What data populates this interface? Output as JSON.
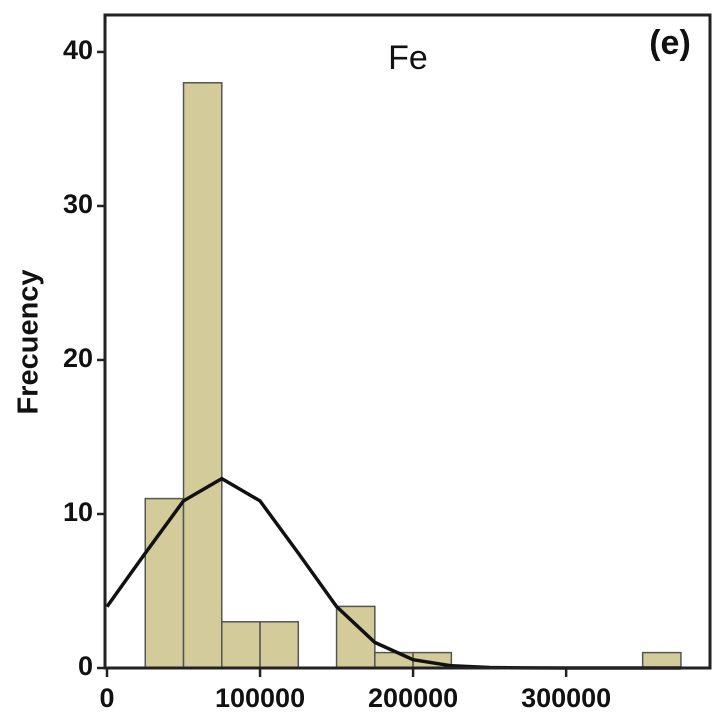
{
  "chart_data": {
    "type": "histogram",
    "title": "Fe",
    "annotation": "(e)",
    "ylabel": "Frecuency",
    "bins": [
      25000,
      50000,
      75000,
      100000,
      125000,
      150000,
      175000,
      200000,
      225000,
      250000,
      275000,
      300000,
      325000,
      350000,
      375000
    ],
    "counts": [
      11,
      38,
      3,
      3,
      0,
      4,
      1,
      1,
      0,
      0,
      0,
      0,
      0,
      1
    ],
    "color": "#d3cc9a",
    "curve": {
      "color": "#111111",
      "x": [
        0,
        25000,
        50000,
        75000,
        100000,
        125000,
        150000,
        175000,
        200000,
        225000,
        250000,
        275000,
        300000,
        325000,
        350000,
        375000
      ],
      "values": [
        3.99,
        7.46,
        10.85,
        12.3,
        10.85,
        7.46,
        3.99,
        1.66,
        0.54,
        0.14,
        0.03,
        0.005,
        0,
        0,
        0,
        0
      ]
    },
    "xlim": [
      0,
      394000
    ],
    "ylim": [
      0,
      42.4
    ],
    "xticks": [
      0,
      100000,
      200000,
      300000
    ],
    "yticks": [
      0,
      10,
      20,
      30,
      40
    ]
  }
}
